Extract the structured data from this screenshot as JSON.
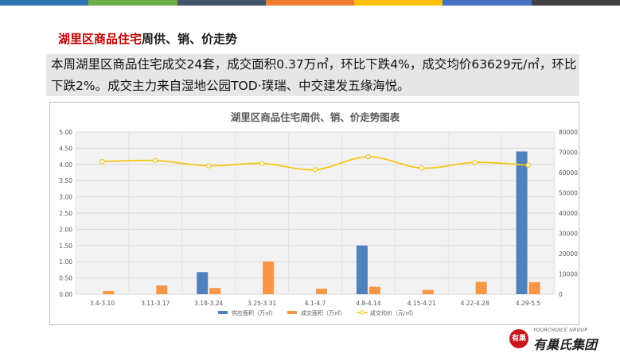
{
  "header_colors": [
    "#2e75b6",
    "#70ad47",
    "#44546a",
    "#ed7d31",
    "#ffc000",
    "#4472c4",
    "#404040"
  ],
  "title": {
    "highlight": "湖里区商品住宅",
    "rest": "周供、销、价走势"
  },
  "summary": "本周湖里区商品住宅成交24套，成交面积0.37万㎡，环比下跌4%，成交均价63629元/㎡，环比下跌2%。成交主力来自湿地公园TOD·璞瑞、中交建发五缘海悦。",
  "chart_data": {
    "type": "bar",
    "title": "湖里区商品住宅周供、销、价走势图表",
    "categories": [
      "3.4-3.10",
      "3.11-3.17",
      "3.18-3.24",
      "3.25-3.31",
      "4.1-4.7",
      "4.8-4.14",
      "4.15-4.21",
      "4.22-4.28",
      "4.29-5.5"
    ],
    "series": [
      {
        "name": "供应面积（万㎡）",
        "type": "bar",
        "axis": "left",
        "color": "#4f81bd",
        "values": [
          0,
          0,
          0.68,
          0,
          0,
          1.5,
          0,
          0,
          4.4
        ]
      },
      {
        "name": "成交面积（万㎡）",
        "type": "bar",
        "axis": "left",
        "color": "#f79646",
        "values": [
          0.1,
          0.27,
          0.19,
          1.01,
          0.17,
          0.23,
          0.13,
          0.38,
          0.37
        ]
      },
      {
        "name": "成交均价（元/㎡）",
        "type": "line",
        "axis": "right",
        "color": "#f5c518",
        "values": [
          65400,
          65900,
          63300,
          64500,
          61400,
          67800,
          62200,
          65000,
          63629
        ]
      }
    ],
    "y_left": {
      "min": 0,
      "max": 5,
      "ticks": [
        "0.00",
        "0.50",
        "1.00",
        "1.50",
        "2.00",
        "2.50",
        "3.00",
        "3.50",
        "4.00",
        "4.50",
        "5.00"
      ]
    },
    "y_right": {
      "min": 0,
      "max": 80000,
      "ticks": [
        "0",
        "10000",
        "20000",
        "30000",
        "40000",
        "50000",
        "60000",
        "70000",
        "80000"
      ]
    },
    "grid": true,
    "legend_position": "bottom"
  },
  "logo": {
    "emblem": "有巢",
    "en": "YOURCHOICE GROUP",
    "cn": "有巢氏集团"
  }
}
